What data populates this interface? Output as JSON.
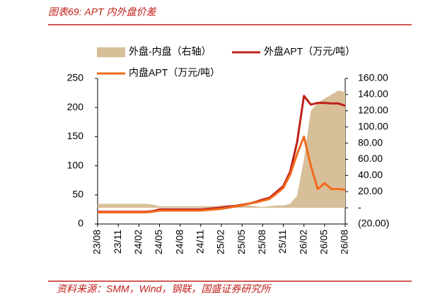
{
  "chart_data": {
    "type": "line",
    "title": "图表69: APT 内外盘价差",
    "source": "资料来源：SMM，Wind，钢联，国盛证券研究所",
    "categories": [
      "23/08",
      null,
      null,
      "23/11",
      null,
      null,
      "24/02",
      null,
      null,
      "24/05",
      null,
      null,
      "24/08",
      null,
      null,
      "24/11",
      null,
      null,
      "25/02",
      null,
      null,
      "25/05",
      null,
      null,
      "25/08",
      null,
      null,
      "25/11",
      null,
      null,
      "26/02",
      null,
      null,
      "26/05",
      null,
      null,
      "26/08"
    ],
    "series": [
      {
        "name": "外盘-内盘（右轴）",
        "type": "area",
        "axis": "y2",
        "color": "#d7bf99",
        "values": [
          5,
          5,
          5,
          5,
          5,
          5,
          5,
          5,
          4,
          2,
          2,
          2,
          2,
          2,
          2,
          2,
          2,
          2,
          3,
          3,
          3,
          3,
          3,
          2,
          1,
          2,
          3,
          3,
          5,
          15,
          60,
          120,
          130,
          135,
          140,
          145,
          143
        ]
      },
      {
        "name": "外盘APT（万元/吨）",
        "type": "line",
        "color": "#c0201a",
        "values": [
          21,
          21,
          21,
          21,
          21,
          21,
          21,
          21,
          22,
          25,
          25,
          25,
          25,
          25,
          25,
          25,
          26,
          27,
          28,
          30,
          31,
          33,
          35,
          38,
          42,
          45,
          55,
          65,
          90,
          140,
          220,
          205,
          208,
          208,
          207,
          207,
          203
        ]
      },
      {
        "name": "内盘APT（万元/吨）",
        "type": "line",
        "color": "#f26a1b",
        "values": [
          20,
          20,
          20,
          20,
          20,
          20,
          20,
          20,
          21,
          23,
          23,
          23,
          23,
          23,
          23,
          23,
          24,
          25,
          26,
          28,
          30,
          32,
          35,
          37,
          40,
          43,
          52,
          62,
          85,
          120,
          150,
          100,
          60,
          70,
          60,
          60,
          59
        ]
      }
    ],
    "ylim": [
      0,
      250
    ],
    "yticks": [
      0,
      50,
      100,
      150,
      200,
      250
    ],
    "y2lim": [
      -20,
      160
    ],
    "y2ticks": [
      {
        "value": -20,
        "label": "(20.00)"
      },
      {
        "value": 0,
        "label": "-"
      },
      {
        "value": 20,
        "label": "20.00"
      },
      {
        "value": 40,
        "label": "40.00"
      },
      {
        "value": 60,
        "label": "60.00"
      },
      {
        "value": 80,
        "label": "80.00"
      },
      {
        "value": 100,
        "label": "100.00"
      },
      {
        "value": 120,
        "label": "120.00"
      },
      {
        "value": 140,
        "label": "140.00"
      },
      {
        "value": 160,
        "label": "160.00"
      }
    ]
  }
}
